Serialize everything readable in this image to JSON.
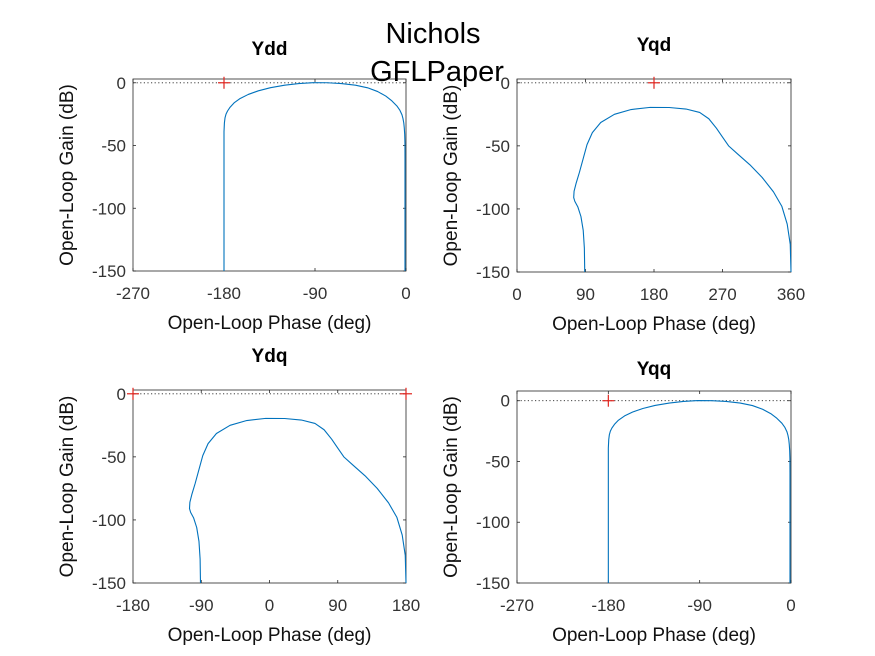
{
  "figure": {
    "suptitle_lines": [
      "Nichols",
      "GFLPaper"
    ]
  },
  "colors": {
    "curve": "#0072BD",
    "marker": "#E0241E",
    "axis": "#262626",
    "tick_text": "#333333",
    "zero_line": "#262626"
  },
  "chart_data": [
    {
      "type": "line",
      "title": "Ydd",
      "xlabel": "Open-Loop Phase (deg)",
      "ylabel": "Open-Loop Gain (dB)",
      "xlim": [
        -270,
        0
      ],
      "ylim": [
        -150,
        3
      ],
      "xticks": [
        -270,
        -180,
        -90,
        0
      ],
      "yticks": [
        -150,
        -100,
        -50,
        0
      ],
      "grid": false,
      "zero_db_line": true,
      "critical_markers": [
        [
          -180,
          0
        ]
      ],
      "series": [
        {
          "x": [
            -180,
            -180,
            -179.6,
            -179,
            -178,
            -176.5,
            -174,
            -170,
            -164,
            -156,
            -146,
            -134,
            -120,
            -106,
            -92,
            -78,
            -64,
            -50,
            -38,
            -28,
            -20,
            -14,
            -9,
            -6,
            -4,
            -3,
            -2.2,
            -1.7,
            -1.3,
            -1.05,
            -1,
            -1
          ],
          "y": [
            -150,
            -39,
            -32,
            -28,
            -25,
            -22.5,
            -19.5,
            -16,
            -12.5,
            -9.3,
            -6.4,
            -3.9,
            -1.9,
            -0.6,
            0.1,
            0,
            -0.6,
            -1.9,
            -4,
            -7,
            -10.6,
            -14.4,
            -18.5,
            -22,
            -25.5,
            -28.5,
            -32,
            -36,
            -41,
            -48,
            -60,
            -150
          ]
        }
      ]
    },
    {
      "type": "line",
      "title": "Yqd",
      "xlabel": "Open-Loop Phase (deg)",
      "ylabel": "Open-Loop Gain (dB)",
      "xlim": [
        0,
        360
      ],
      "ylim": [
        -150,
        3
      ],
      "xticks": [
        0,
        90,
        180,
        270,
        360
      ],
      "yticks": [
        -150,
        -100,
        -50,
        0
      ],
      "grid": false,
      "zero_db_line": true,
      "critical_markers": [
        [
          180,
          0
        ]
      ],
      "series": [
        {
          "x": [
            89,
            88.5,
            87,
            84,
            80,
            76,
            74.5,
            75,
            77.5,
            82,
            87,
            92,
            99,
            110,
            128,
            150,
            175,
            200,
            222,
            240,
            252,
            262,
            270,
            278,
            290,
            306,
            322,
            337,
            348,
            355,
            359,
            360
          ],
          "y": [
            -150,
            -131,
            -117,
            -106,
            -98.5,
            -94,
            -91,
            -86,
            -80,
            -71,
            -60,
            -49,
            -39.5,
            -31.5,
            -25,
            -21.2,
            -19.5,
            -19.6,
            -20.8,
            -23.5,
            -28.5,
            -36,
            -43,
            -50,
            -56.5,
            -65,
            -75,
            -86.5,
            -98,
            -112,
            -128,
            -150
          ]
        }
      ]
    },
    {
      "type": "line",
      "title": "Ydq",
      "xlabel": "Open-Loop Phase (deg)",
      "ylabel": "Open-Loop Gain (dB)",
      "xlim": [
        -180,
        180
      ],
      "ylim": [
        -150,
        3
      ],
      "xticks": [
        -180,
        -90,
        0,
        90,
        180
      ],
      "yticks": [
        -150,
        -100,
        -50,
        0
      ],
      "grid": false,
      "zero_db_line": true,
      "critical_markers": [
        [
          -180,
          0
        ],
        [
          180,
          0
        ]
      ],
      "series": [
        {
          "x": [
            -91,
            -91.5,
            -93,
            -96,
            -100,
            -104,
            -105.5,
            -105,
            -102.5,
            -98,
            -93,
            -88,
            -81,
            -70,
            -52,
            -30,
            -5,
            20,
            42,
            60,
            72,
            82,
            90,
            98,
            110,
            126,
            142,
            157,
            168,
            175,
            179,
            180
          ],
          "y": [
            -150,
            -131,
            -117,
            -106,
            -98.5,
            -94,
            -91,
            -86,
            -80,
            -71,
            -60,
            -49,
            -39.5,
            -31.5,
            -25,
            -21.2,
            -19.5,
            -19.6,
            -20.8,
            -23.5,
            -28.5,
            -36,
            -43,
            -50,
            -56.5,
            -65,
            -75,
            -86.5,
            -98,
            -112,
            -128,
            -150
          ]
        }
      ]
    },
    {
      "type": "line",
      "title": "Yqq",
      "xlabel": "Open-Loop Phase (deg)",
      "ylabel": "Open-Loop Gain (dB)",
      "xlim": [
        -270,
        0
      ],
      "ylim": [
        -150,
        8
      ],
      "xticks": [
        -270,
        -180,
        -90,
        0
      ],
      "yticks": [
        -150,
        -100,
        -50,
        0
      ],
      "grid": false,
      "zero_db_line": true,
      "critical_markers": [
        [
          -180,
          0
        ]
      ],
      "series": [
        {
          "x": [
            -180,
            -180,
            -179.6,
            -179,
            -178,
            -176.5,
            -174,
            -170,
            -164,
            -156,
            -146,
            -134,
            -120,
            -106,
            -92,
            -78,
            -64,
            -50,
            -38,
            -28,
            -20,
            -14,
            -9,
            -6,
            -4,
            -3,
            -2.2,
            -1.7,
            -1.3,
            -1.05,
            -1,
            -1
          ],
          "y": [
            -150,
            -39,
            -32,
            -28,
            -25,
            -22.5,
            -19.5,
            -16,
            -12.5,
            -9.3,
            -6.4,
            -3.9,
            -1.9,
            -0.6,
            0.1,
            0,
            -0.6,
            -1.9,
            -4,
            -7,
            -10.6,
            -14.4,
            -18.5,
            -22,
            -25.5,
            -28.5,
            -32,
            -36,
            -41,
            -48,
            -60,
            -150
          ]
        }
      ]
    }
  ]
}
